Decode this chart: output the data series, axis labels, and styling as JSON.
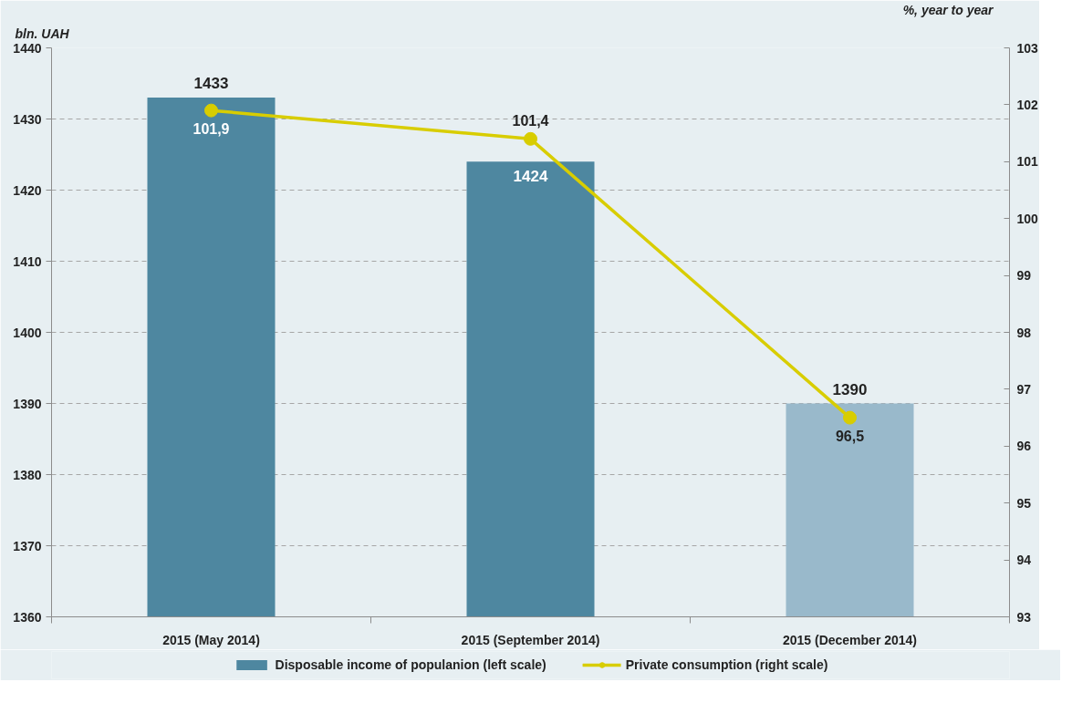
{
  "chart_data": {
    "type": "bar",
    "ylabel": "bln. UAH",
    "y2label": "%, year to year",
    "categories": [
      "2015 (May 2014)",
      "2015 (September 2014)",
      "2015 (December 2014)"
    ],
    "ylim": [
      1360,
      1440
    ],
    "yticks": [
      1360,
      1370,
      1380,
      1390,
      1400,
      1410,
      1420,
      1430,
      1440
    ],
    "y2lim": [
      93,
      103
    ],
    "y2ticks": [
      93,
      94,
      95,
      96,
      97,
      98,
      99,
      100,
      101,
      102,
      103
    ],
    "grid": "y",
    "legend": "bottom",
    "marker": "circle",
    "series": [
      {
        "name": "Disposable income of populanion (left scale)",
        "colors": [
          "#4e87a0",
          "#4e87a0",
          "#99b9cb"
        ],
        "values": [
          1433,
          1424,
          1390
        ],
        "value_labels": [
          "1433",
          "1424",
          "1390"
        ]
      },
      {
        "name": "Private consumption (right scale)",
        "type": "line",
        "axis": "y2",
        "color": "#d8cd00",
        "values": [
          101.9,
          101.4,
          96.5
        ],
        "value_labels": [
          "101,9",
          "101,4",
          "96,5"
        ]
      }
    ]
  }
}
